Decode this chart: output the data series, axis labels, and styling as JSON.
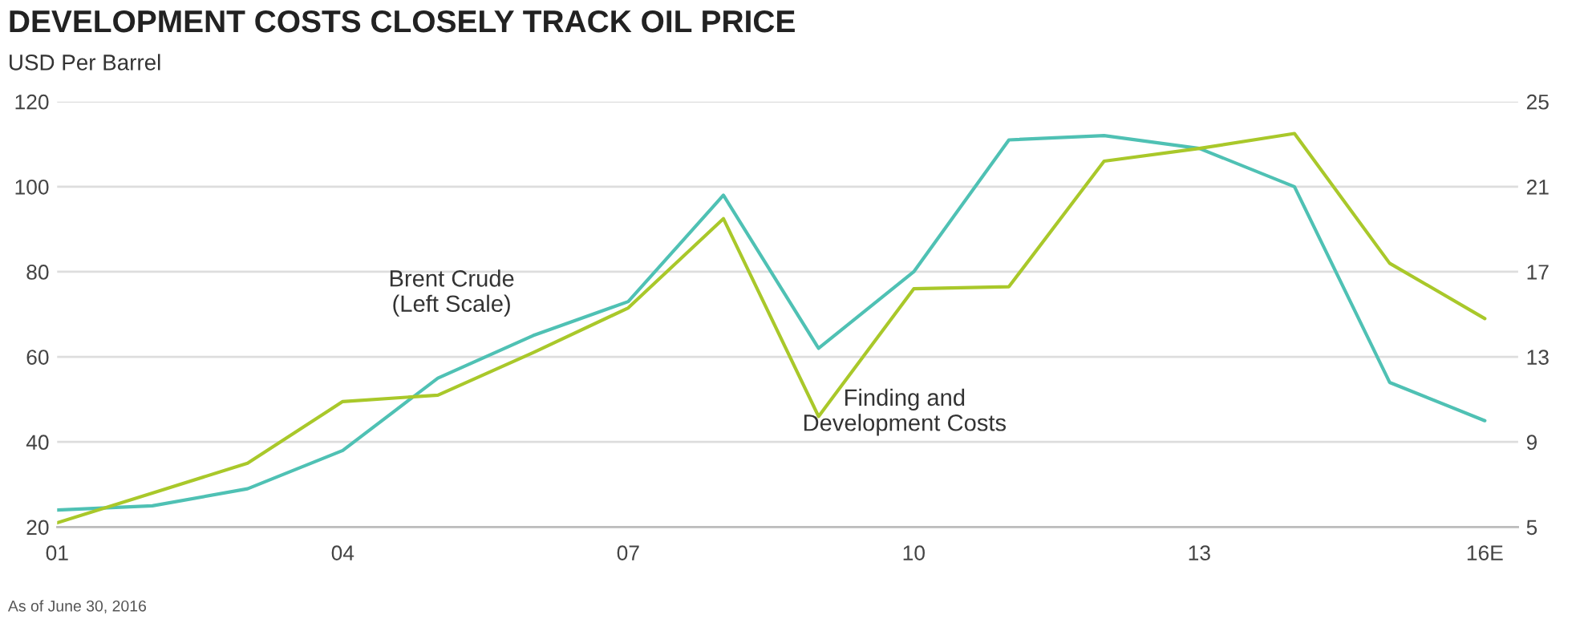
{
  "chart_data": {
    "type": "line",
    "title": "DEVELOPMENT COSTS CLOSELY TRACK OIL PRICE",
    "subtitle": "USD Per Barrel",
    "categories": [
      "01",
      null,
      null,
      "04",
      null,
      null,
      "07",
      null,
      null,
      "10",
      null,
      null,
      "13",
      null,
      null,
      "16E"
    ],
    "series": [
      {
        "name": "Brent Crude\n(Left Scale)",
        "color": "#4fc1b4",
        "values": [
          24,
          25,
          29,
          38,
          55,
          65,
          73,
          98,
          62,
          80,
          111,
          112,
          109,
          100,
          54,
          45
        ]
      },
      {
        "name": "Finding and\nDevelopment Costs",
        "color": "#a9c82a",
        "axis": "y2",
        "values": [
          5.2,
          6.6,
          8.0,
          10.9,
          11.2,
          13.2,
          15.3,
          19.5,
          10.2,
          16.2,
          16.3,
          22.2,
          22.8,
          23.5,
          17.4,
          14.8
        ]
      }
    ],
    "ylim": [
      20,
      120
    ],
    "yticks": [
      20,
      40,
      60,
      80,
      100,
      120
    ],
    "y2lim": [
      5,
      25
    ],
    "y2ticks": [
      5,
      9,
      13,
      17,
      21,
      25
    ],
    "grid": "y",
    "legend": false,
    "annotations": [
      "As of June 30, 2016"
    ]
  }
}
